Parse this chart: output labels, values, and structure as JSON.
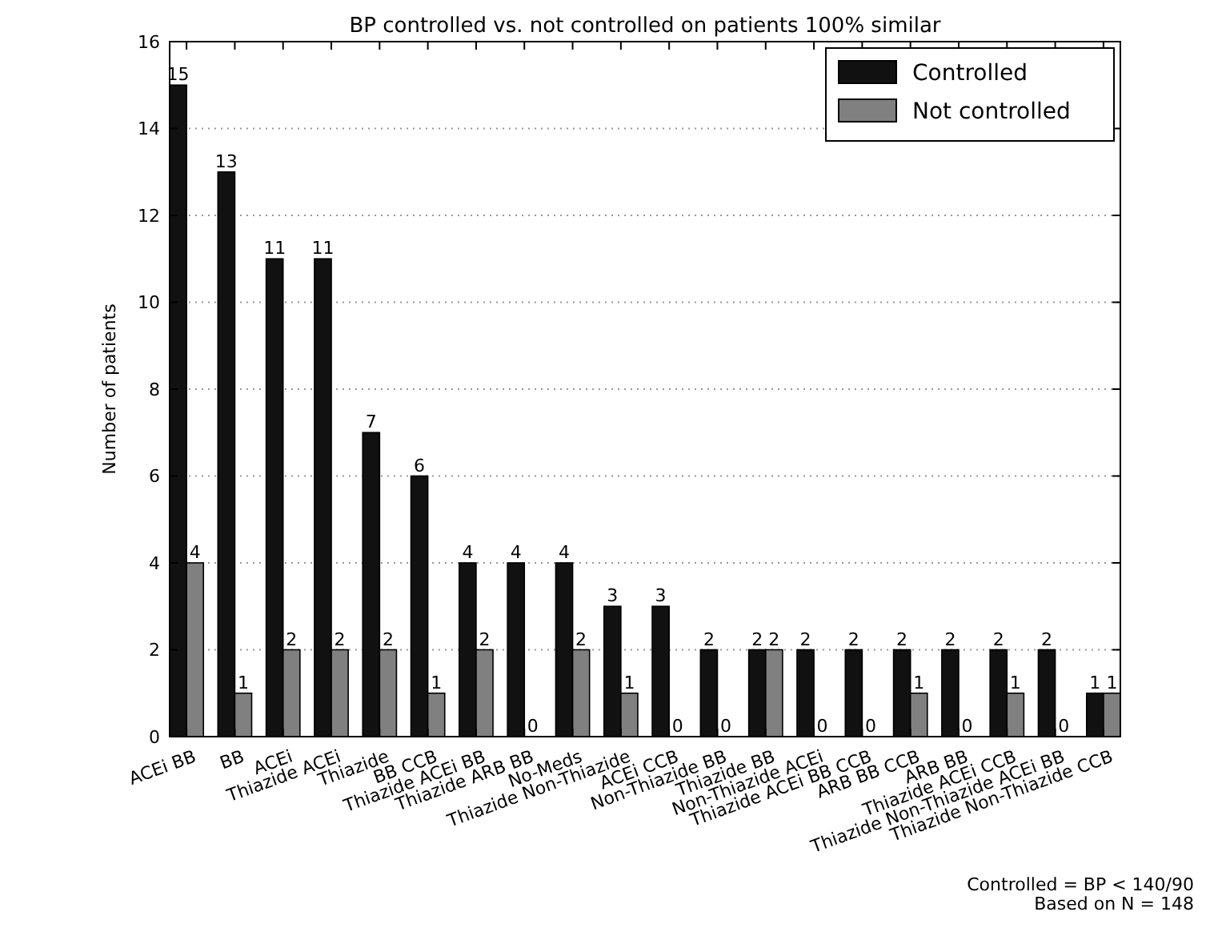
{
  "chart_data": {
    "type": "bar",
    "title": "BP controlled vs. not controlled on patients 100% similar",
    "ylabel": "Number of patients",
    "categories": [
      "ACEi BB",
      "BB",
      "ACEi",
      "Thiazide ACEi",
      "Thiazide",
      "BB CCB",
      "Thiazide ACEi BB",
      "Thiazide ARB BB",
      "No-Meds",
      "Thiazide Non-Thiazide",
      "ACEi CCB",
      "Non-Thiazide BB",
      "Thiazide BB",
      "Non-Thiazide ACEi",
      "Thiazide ACEi BB CCB",
      "ARB BB CCB",
      "ARB BB",
      "Thiazide ACEi CCB",
      "Thiazide Non-Thiazide ACEi BB",
      "Thiazide Non-Thiazide CCB"
    ],
    "series": [
      {
        "name": "Controlled",
        "color": "#111111",
        "values": [
          15,
          13,
          11,
          11,
          7,
          6,
          4,
          4,
          4,
          3,
          3,
          2,
          2,
          2,
          2,
          2,
          2,
          2,
          2,
          1
        ]
      },
      {
        "name": "Not controlled",
        "color": "#808080",
        "values": [
          4,
          1,
          2,
          2,
          2,
          1,
          2,
          0,
          2,
          1,
          0,
          0,
          2,
          0,
          0,
          1,
          0,
          1,
          0,
          1
        ]
      }
    ],
    "ylim": [
      0,
      16
    ],
    "yticks": [
      0,
      2,
      4,
      6,
      8,
      10,
      12,
      14,
      16
    ],
    "grid": "y",
    "legend": "top right",
    "data_labels": true,
    "annotations": [
      "Controlled = BP < 140/90",
      "Based on N = 148"
    ]
  }
}
